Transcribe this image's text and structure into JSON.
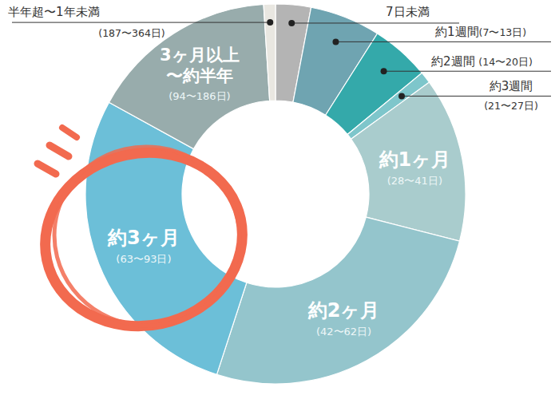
{
  "chart_data": {
    "type": "donut",
    "categories": [
      "7日未満",
      "約1週間(7〜13日)",
      "約2週間 (14〜20日)",
      "約3週間\n(21〜27日)",
      "約1ヶ月\n(28〜41日)",
      "約2ヶ月\n(42〜62日)",
      "約3ヶ月\n(63〜93日)",
      "3ヶ月以上\n〜約半年\n(94〜186日)",
      "半年超〜1年未満\n(187〜364日)"
    ],
    "values": [
      3,
      6,
      5,
      1,
      14,
      26,
      28,
      16,
      1
    ],
    "colors": [
      "#b4b4b4",
      "#6fa4b1",
      "#34a9aa",
      "#7ec6cb",
      "#a9cccd",
      "#94c5cc",
      "#6cbfd8",
      "#98acac",
      "#e9e7e1"
    ]
  }
}
